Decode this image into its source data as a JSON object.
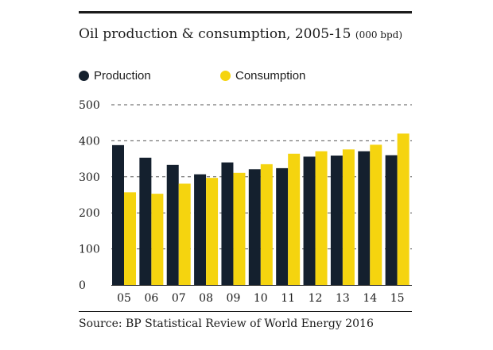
{
  "chart_data": {
    "type": "bar",
    "title": "Oil production & consumption, 2005-15",
    "title_unit": "(000 bpd)",
    "categories": [
      "05",
      "06",
      "07",
      "08",
      "09",
      "10",
      "11",
      "12",
      "13",
      "14",
      "15"
    ],
    "series": [
      {
        "name": "Production",
        "color": "#14202e",
        "values": [
          388,
          353,
          333,
          307,
          340,
          321,
          324,
          356,
          359,
          371,
          360
        ]
      },
      {
        "name": "Consumption",
        "color": "#f5d40f",
        "values": [
          257,
          253,
          281,
          297,
          311,
          335,
          364,
          371,
          376,
          389,
          420
        ]
      }
    ],
    "yticks": [
      0,
      100,
      200,
      300,
      400,
      500
    ],
    "ylim": [
      0,
      500
    ],
    "grid": true,
    "legend_position": "top-left",
    "source": "Source: BP Statistical Review of World Energy 2016"
  }
}
